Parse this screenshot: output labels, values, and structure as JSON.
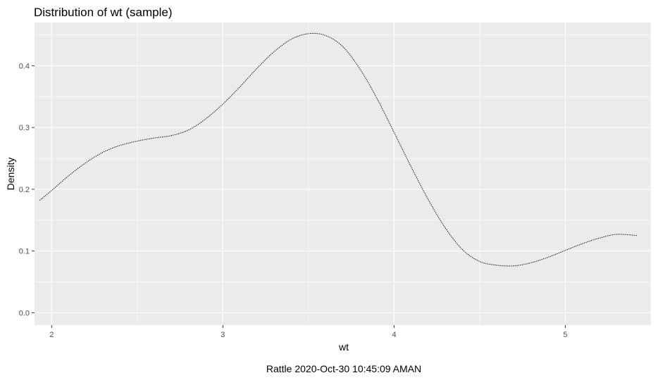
{
  "chart_data": {
    "type": "line",
    "title": "Distribution of wt (sample)",
    "xlabel": "wt",
    "ylabel": "Density",
    "caption": "Rattle 2020-Oct-30 10:45:09 AMAN",
    "xlim": [
      1.9,
      5.5
    ],
    "ylim": [
      -0.02,
      0.47
    ],
    "x_ticks": [
      2,
      3,
      4,
      5
    ],
    "x_tick_labels": [
      "2",
      "3",
      "4",
      "5"
    ],
    "y_ticks": [
      0.0,
      0.1,
      0.2,
      0.3,
      0.4
    ],
    "y_tick_labels": [
      "0.0",
      "0.1",
      "0.2",
      "0.3",
      "0.4"
    ],
    "grid": true,
    "line_style": "dotted",
    "colors": {
      "panel": "#ebebeb",
      "grid": "#ffffff",
      "line": "#000000",
      "tick": "#4d4d4d"
    },
    "series": [
      {
        "x": [
          1.93,
          2.0,
          2.1,
          2.2,
          2.3,
          2.4,
          2.5,
          2.6,
          2.7,
          2.8,
          2.9,
          3.0,
          3.1,
          3.2,
          3.3,
          3.4,
          3.5,
          3.6,
          3.7,
          3.8,
          3.9,
          4.0,
          4.1,
          4.2,
          4.3,
          4.4,
          4.5,
          4.6,
          4.7,
          4.8,
          4.9,
          5.0,
          5.1,
          5.2,
          5.3,
          5.42
        ],
        "y": [
          0.182,
          0.198,
          0.222,
          0.243,
          0.26,
          0.271,
          0.278,
          0.283,
          0.287,
          0.296,
          0.314,
          0.338,
          0.366,
          0.396,
          0.423,
          0.443,
          0.452,
          0.449,
          0.431,
          0.395,
          0.347,
          0.292,
          0.236,
          0.183,
          0.137,
          0.102,
          0.083,
          0.077,
          0.076,
          0.081,
          0.09,
          0.101,
          0.112,
          0.121,
          0.127,
          0.125
        ]
      }
    ]
  }
}
